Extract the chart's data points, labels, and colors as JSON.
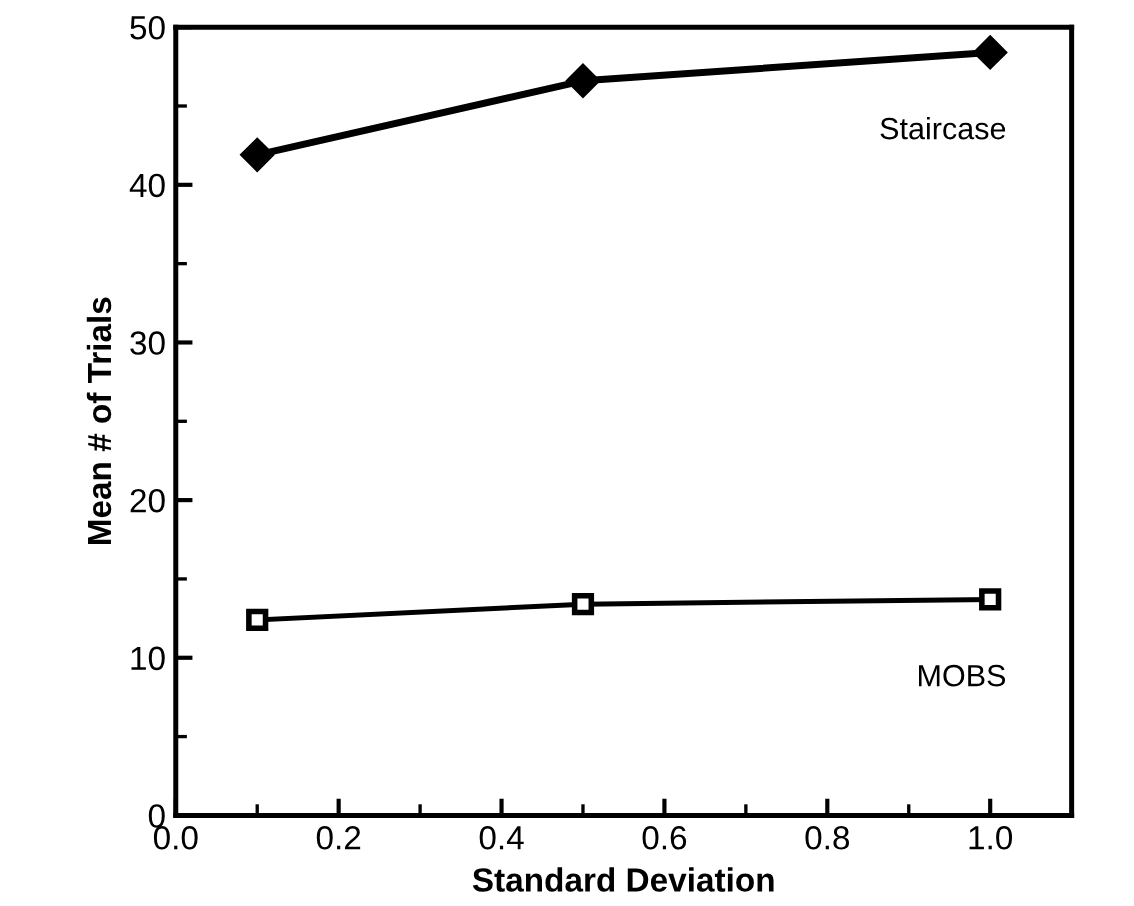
{
  "chart_data": {
    "type": "line",
    "xlabel": "Standard Deviation",
    "ylabel": "Mean # of Trials",
    "x": [
      0.1,
      0.5,
      1.0
    ],
    "series": [
      {
        "name": "Staircase",
        "color": "#000000",
        "values": [
          41.9,
          46.6,
          48.4
        ],
        "marker": "diamond"
      },
      {
        "name": "MOBS",
        "color": "#000000",
        "values": [
          12.4,
          13.4,
          13.7
        ],
        "marker": "square"
      }
    ],
    "xlim": [
      0,
      1.1
    ],
    "xticks": [
      {
        "value": 0.0,
        "label": "0.0"
      },
      0.2,
      0.4,
      0.6,
      0.8,
      {
        "value": 1.0,
        "label": "1.0"
      }
    ],
    "ylim": [
      0,
      50
    ],
    "yticks": [
      0,
      10,
      20,
      30,
      40,
      50
    ],
    "grid": false,
    "line_style": "solid"
  }
}
